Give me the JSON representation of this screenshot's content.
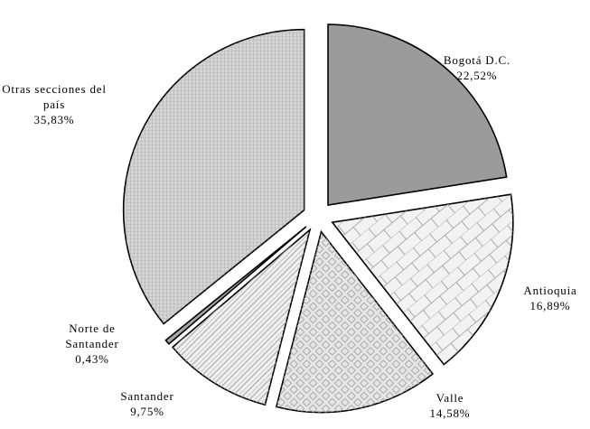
{
  "chart_data": {
    "type": "pie",
    "categories": [
      "Bogotá D.C.",
      "Antioquia",
      "Valle",
      "Santander",
      "Norte de Santander",
      "Otras secciones del país"
    ],
    "values": [
      22.52,
      16.89,
      14.58,
      9.75,
      0.43,
      35.83
    ],
    "value_labels": [
      "22,52%",
      "16,89%",
      "14,58%",
      "9,75%",
      "0,43%",
      "35,83%"
    ],
    "colors": [
      "#9b9b9b",
      "#f2f2f2",
      "#e6e6e6",
      "#f0f0f0",
      "#a6a6a6",
      "#d4d4d4"
    ]
  }
}
